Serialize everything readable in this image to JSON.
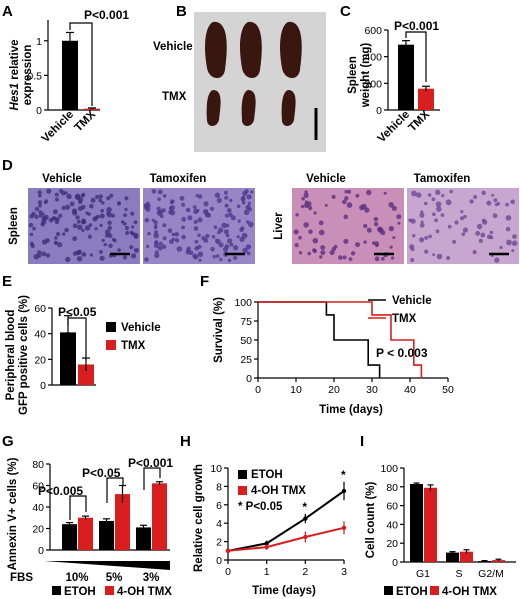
{
  "colors": {
    "control": "#000000",
    "treated": "#d81e1e",
    "micro_bg_spleen": "#8a7cbf",
    "micro_bg_liver": "#c48ab5",
    "organ": "#3a1610",
    "photo_bg": "#d4d4d4"
  },
  "panels": {
    "A": {
      "letter": "A"
    },
    "B": {
      "letter": "B"
    },
    "C": {
      "letter": "C"
    },
    "D": {
      "letter": "D"
    },
    "E": {
      "letter": "E"
    },
    "F": {
      "letter": "F"
    },
    "G": {
      "letter": "G"
    },
    "H": {
      "letter": "H"
    },
    "I": {
      "letter": "I"
    }
  },
  "chart_data": [
    {
      "id": "A",
      "type": "bar",
      "ylabel_italic": "Hes1",
      "ylabel_rest": " relative",
      "ylabel_line2": "expression",
      "categories": [
        "Vehicle",
        "TMX"
      ],
      "values": [
        1.0,
        0.02
      ],
      "errors": [
        0.12,
        0.01
      ],
      "yticks": [
        "0",
        "0.5",
        "1"
      ],
      "ylim": [
        0,
        1.3
      ],
      "annotation": "P<0.001"
    },
    {
      "id": "C",
      "type": "bar",
      "ylabel": "Spleen",
      "ylabel_line2": "weight (mg)",
      "categories": [
        "Vehicle",
        "TMX"
      ],
      "values": [
        490,
        160
      ],
      "errors": [
        30,
        18
      ],
      "yticks": [
        "0",
        "200",
        "400",
        "600"
      ],
      "ylim": [
        0,
        600
      ],
      "annotation": "P<0.001"
    },
    {
      "id": "E",
      "type": "bar",
      "ylabel": "Peripheral blood",
      "ylabel_line2": "GFP positive cells (%)",
      "series": [
        {
          "name": "Vehicle",
          "values": [
            41
          ],
          "errors": [
            13
          ]
        },
        {
          "name": "TMX",
          "values": [
            16
          ],
          "errors": [
            5
          ]
        }
      ],
      "yticks": [
        "0",
        "20",
        "40",
        "60"
      ],
      "ylim": [
        0,
        60
      ],
      "annotation": "P<0.05"
    },
    {
      "id": "F",
      "type": "line",
      "ylabel": "Survival (%)",
      "xlabel": "Time (days)",
      "xticks": [
        "0",
        "10",
        "20",
        "30",
        "40",
        "50"
      ],
      "yticks": [
        "0",
        "25",
        "50",
        "75",
        "100"
      ],
      "xlim": [
        0,
        50
      ],
      "ylim": [
        0,
        100
      ],
      "series": [
        {
          "name": "Vehicle",
          "x": [
            0,
            18,
            18,
            20,
            20,
            29,
            29,
            32,
            32
          ],
          "y": [
            100,
            100,
            83,
            83,
            50,
            50,
            17,
            17,
            0
          ]
        },
        {
          "name": "TMX",
          "x": [
            0,
            30,
            30,
            35,
            35,
            41,
            41,
            43,
            43
          ],
          "y": [
            100,
            100,
            83,
            83,
            50,
            50,
            17,
            17,
            0
          ]
        }
      ],
      "annotation": "P < 0.003"
    },
    {
      "id": "G",
      "type": "bar",
      "ylabel": "Annexin V+ cells (%)",
      "categories": [
        "10%",
        "5%",
        "3%"
      ],
      "category_prefix": "FBS",
      "series": [
        {
          "name": "ETOH",
          "values": [
            24,
            27,
            21
          ],
          "errors": [
            1.5,
            2,
            2
          ]
        },
        {
          "name": "4-OH TMX",
          "values": [
            30,
            52,
            62
          ],
          "errors": [
            1.5,
            8,
            1.5
          ]
        }
      ],
      "yticks": [
        "0",
        "20",
        "40",
        "60",
        "80"
      ],
      "ylim": [
        0,
        80
      ],
      "annotations": [
        "P<0.005",
        "P<0.05",
        "P<0.001"
      ]
    },
    {
      "id": "H",
      "type": "line",
      "ylabel": "Relative cell growth",
      "xlabel": "Time (days)",
      "xticks": [
        "0",
        "1",
        "2",
        "3"
      ],
      "yticks": [
        "0",
        "2",
        "4",
        "6",
        "8",
        "10"
      ],
      "xlim": [
        0,
        3
      ],
      "ylim": [
        0,
        10
      ],
      "series": [
        {
          "name": "ETOH",
          "x": [
            0,
            1,
            2,
            3
          ],
          "y": [
            1.0,
            1.8,
            4.5,
            7.5
          ],
          "errors": [
            0.2,
            0.3,
            0.5,
            1.0
          ]
        },
        {
          "name": "4-OH TMX",
          "x": [
            0,
            1,
            2,
            3
          ],
          "y": [
            1.0,
            1.4,
            2.5,
            3.5
          ],
          "errors": [
            0.2,
            0.3,
            0.6,
            0.7
          ]
        }
      ],
      "star_days": [
        2,
        3
      ],
      "legend_note": "* P<0.05"
    },
    {
      "id": "I",
      "type": "bar",
      "ylabel": "Cell count (%)",
      "categories": [
        "G1",
        "S",
        "G2/M"
      ],
      "series": [
        {
          "name": "ETOH",
          "values": [
            83,
            10,
            1
          ],
          "errors": [
            1,
            1,
            0.5
          ]
        },
        {
          "name": "4-OH TMX",
          "values": [
            79,
            11,
            2
          ],
          "errors": [
            3,
            2,
            1
          ]
        }
      ],
      "yticks": [
        "0",
        "20",
        "40",
        "60",
        "80",
        "100"
      ],
      "ylim": [
        0,
        100
      ]
    }
  ],
  "photo_B": {
    "row_labels": [
      "Vehicle",
      "TMX"
    ]
  },
  "micrographs": {
    "left_titles": [
      "Vehicle",
      "Tamoxifen"
    ],
    "left_row_label": "Spleen",
    "right_titles": [
      "Vehicle",
      "Tamoxifen"
    ],
    "right_row_label": "Liver"
  },
  "bottom_legend": {
    "items": [
      "ETOH",
      "4-OH TMX"
    ]
  }
}
